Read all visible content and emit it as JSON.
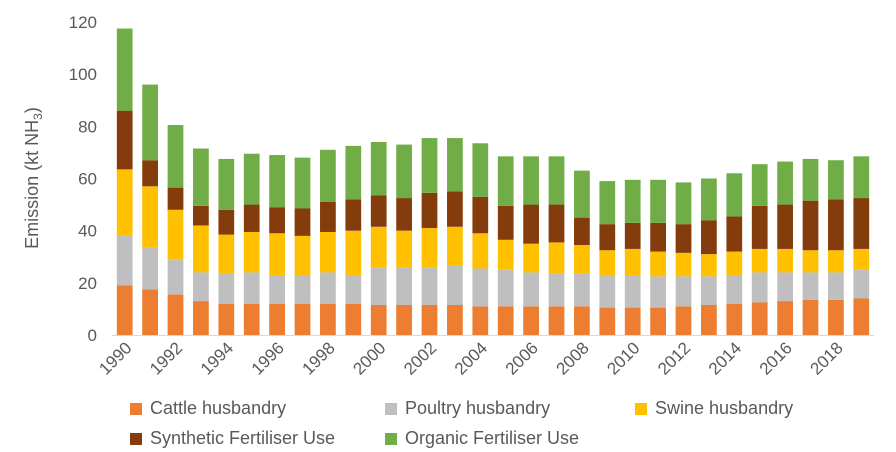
{
  "chart_data": {
    "type": "bar",
    "stacked": true,
    "ylabel_main": "Emission (kt NH",
    "ylabel_sub": "3",
    "ylabel_end": ")",
    "ylim": [
      0,
      120
    ],
    "yticks": [
      "0",
      "20",
      "40",
      "60",
      "80",
      "100",
      "120"
    ],
    "ytick_values": [
      0,
      20,
      40,
      60,
      80,
      100,
      120
    ],
    "grid": false,
    "legend_position": "bottom",
    "categories": [
      "1990",
      "1991",
      "1992",
      "1993",
      "1994",
      "1995",
      "1996",
      "1997",
      "1998",
      "1999",
      "2000",
      "2001",
      "2002",
      "2003",
      "2004",
      "2005",
      "2006",
      "2007",
      "2008",
      "2009",
      "2010",
      "2011",
      "2012",
      "2013",
      "2014",
      "2015",
      "2016",
      "2017",
      "2018",
      "2019"
    ],
    "xtick_labels": [
      "1990",
      "1992",
      "1994",
      "1996",
      "1998",
      "2000",
      "2002",
      "2004",
      "2006",
      "2008",
      "2010",
      "2012",
      "2014",
      "2016",
      "2018"
    ],
    "series": [
      {
        "name": "Cattle husbandry",
        "color": "#ED7D31",
        "values": [
          19,
          17.5,
          15.5,
          13,
          12,
          12,
          12,
          12,
          12,
          12,
          11.5,
          11.5,
          11.5,
          11.5,
          11,
          11,
          11,
          11,
          11,
          10.5,
          10.5,
          10.5,
          11,
          11.5,
          12,
          12.5,
          13,
          13.5,
          13.5,
          14
        ]
      },
      {
        "name": "Poultry husbandry",
        "color": "#BFBFBF",
        "values": [
          19,
          16,
          13.5,
          11,
          11.5,
          12,
          11,
          11,
          12,
          11,
          14.5,
          14.5,
          14.5,
          15,
          14.5,
          14,
          13,
          12.5,
          12.5,
          12.5,
          12.5,
          12,
          11.5,
          11,
          11,
          11.5,
          11,
          10.5,
          10.5,
          11
        ]
      },
      {
        "name": "Swine husbandry",
        "color": "#FFC000",
        "values": [
          25.5,
          23.5,
          19,
          18,
          15,
          15.5,
          16,
          15,
          15.5,
          17,
          15.5,
          14,
          15,
          15,
          13.5,
          11.5,
          11,
          12,
          11,
          9.5,
          10,
          9.5,
          9,
          8.5,
          9,
          9,
          9,
          8.5,
          8.5,
          8
        ]
      },
      {
        "name": "Synthetic Fertiliser Use",
        "color": "#843C0C",
        "values": [
          22.5,
          10,
          8.5,
          7.5,
          9.5,
          10.5,
          10,
          10.5,
          11.5,
          12,
          12,
          12.5,
          13.5,
          13.5,
          14,
          13,
          15,
          14.5,
          10.5,
          10,
          10,
          11,
          11,
          13,
          13.5,
          16.5,
          17,
          19,
          19.5,
          19.5
        ]
      },
      {
        "name": "Organic Fertiliser Use",
        "color": "#70AD47",
        "values": [
          31.5,
          29,
          24,
          22,
          19.5,
          19.5,
          20,
          19.5,
          20,
          20.5,
          20.5,
          20.5,
          21,
          20.5,
          20.5,
          19,
          18.5,
          18.5,
          18,
          16.5,
          16.5,
          16.5,
          16,
          16,
          16.5,
          16,
          16.5,
          16,
          15,
          16
        ]
      }
    ]
  }
}
